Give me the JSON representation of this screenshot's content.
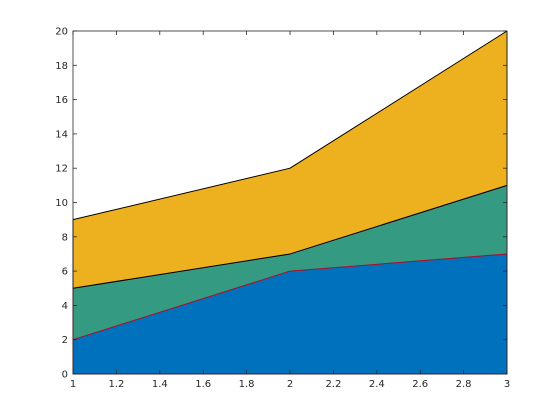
{
  "chart_data": {
    "type": "area",
    "stacked": true,
    "x": [
      1,
      2,
      3
    ],
    "series": [
      {
        "values": [
          2,
          6,
          7
        ],
        "color": "#0072BD",
        "edge_color": "#A2142F"
      },
      {
        "values": [
          3,
          1,
          4
        ],
        "color": "#349A81",
        "edge_color": "#A2142F"
      },
      {
        "values": [
          4,
          5,
          9
        ],
        "color": "#EDB120",
        "edge_color": "#000000"
      }
    ],
    "xlim": [
      1,
      3
    ],
    "ylim": [
      0,
      20
    ],
    "xticks": [
      1,
      1.2,
      1.4,
      1.6,
      1.8,
      2,
      2.2,
      2.4,
      2.6,
      2.8,
      3
    ],
    "xtick_labels": [
      "1",
      "1.2",
      "1.4",
      "1.6",
      "1.8",
      "2",
      "2.2",
      "2.4",
      "2.6",
      "2.8",
      "3"
    ],
    "yticks": [
      0,
      2,
      4,
      6,
      8,
      10,
      12,
      14,
      16,
      18,
      20
    ],
    "ytick_labels": [
      "0",
      "2",
      "4",
      "6",
      "8",
      "10",
      "12",
      "14",
      "16",
      "18",
      "20"
    ],
    "grid": false,
    "box": true,
    "axes_color": "#262626"
  }
}
